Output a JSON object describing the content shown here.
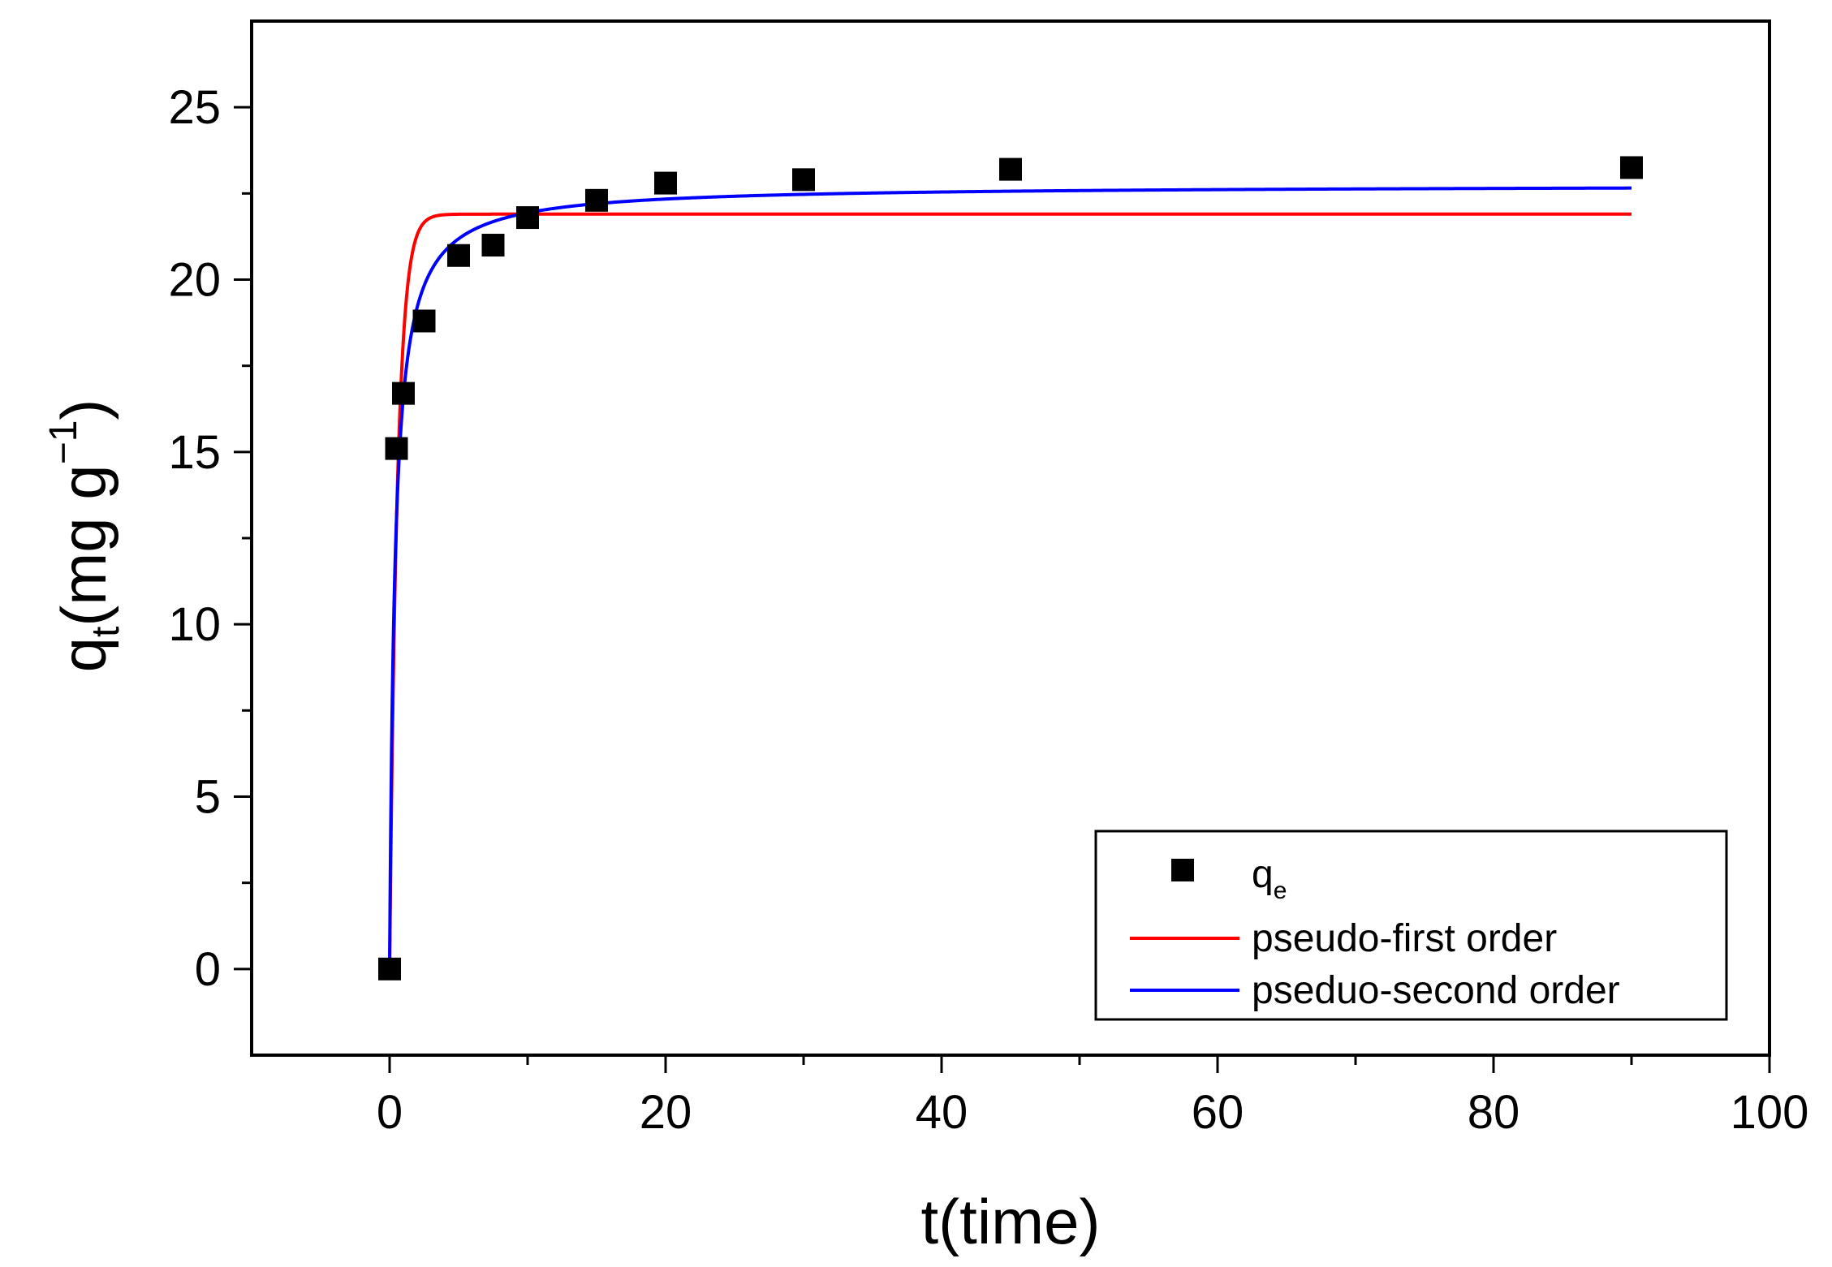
{
  "chart_data": {
    "type": "scatter",
    "title": "",
    "xlabel": "t(time)",
    "ylabel": {
      "base": "q",
      "sub": "t",
      "text": "(mg g",
      "sup": "−1",
      "close": ")"
    },
    "xlim": [
      -10,
      100
    ],
    "ylim": [
      -2.5,
      27.5
    ],
    "xticks": [
      0,
      20,
      40,
      60,
      80,
      100
    ],
    "yticks": [
      0,
      5,
      10,
      15,
      20,
      25
    ],
    "xtick_labels": [
      "0",
      "20",
      "40",
      "60",
      "80",
      "100"
    ],
    "ytick_labels": [
      "0",
      "5",
      "10",
      "15",
      "20",
      "25"
    ],
    "grid": false,
    "legend_position": "bottom-right",
    "series": [
      {
        "name": "q",
        "name_sub": "e",
        "kind": "scatter",
        "color": "#000000",
        "x": [
          0,
          0.5,
          1,
          2.5,
          5,
          7.5,
          10,
          15,
          20,
          30,
          45,
          90
        ],
        "y": [
          0,
          15.1,
          16.7,
          18.8,
          20.7,
          21.0,
          21.8,
          22.3,
          22.8,
          22.9,
          23.2,
          23.25
        ]
      },
      {
        "name": "pseudo-first order",
        "kind": "line",
        "color": "#ff0000",
        "qe": 21.9,
        "k1": 1.8
      },
      {
        "name": "pseduo-second order",
        "kind": "line",
        "color": "#0000ff",
        "qe": 22.75,
        "k2": 0.119
      }
    ]
  }
}
